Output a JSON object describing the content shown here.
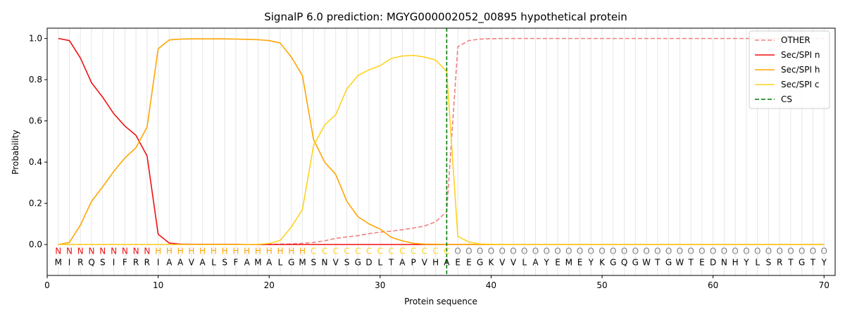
{
  "chart_data": {
    "type": "line",
    "title": "SignalP 6.0 prediction: MGYG000002052_00895 hypothetical protein",
    "xlabel": "Protein sequence",
    "ylabel": "Probability",
    "xlim": [
      0,
      71
    ],
    "ylim": [
      -0.15,
      1.05
    ],
    "x_ticks": [
      0,
      10,
      20,
      30,
      40,
      50,
      60,
      70
    ],
    "y_ticks": [
      0.0,
      0.2,
      0.4,
      0.6,
      0.8,
      1.0
    ],
    "grid": "vertical lines at each residue",
    "legend_position": "top-right",
    "sequence": [
      "M",
      "I",
      "R",
      "Q",
      "S",
      "I",
      "F",
      "R",
      "R",
      "I",
      "A",
      "A",
      "V",
      "A",
      "L",
      "S",
      "F",
      "A",
      "M",
      "A",
      "L",
      "G",
      "M",
      "S",
      "N",
      "V",
      "S",
      "G",
      "D",
      "L",
      "T",
      "A",
      "P",
      "V",
      "H",
      "A",
      "E",
      "E",
      "G",
      "K",
      "V",
      "V",
      "L",
      "A",
      "Y",
      "E",
      "M",
      "E",
      "Y",
      "K",
      "G",
      "Q",
      "G",
      "W",
      "T",
      "G",
      "W",
      "T",
      "E",
      "D",
      "N",
      "H",
      "Y",
      "L",
      "S",
      "R",
      "T",
      "G",
      "T",
      "Y"
    ],
    "annotation": [
      "N",
      "N",
      "N",
      "N",
      "N",
      "N",
      "N",
      "N",
      "N",
      "H",
      "H",
      "H",
      "H",
      "H",
      "H",
      "H",
      "H",
      "H",
      "H",
      "H",
      "H",
      "H",
      "H",
      "C",
      "C",
      "C",
      "C",
      "C",
      "C",
      "C",
      "C",
      "C",
      "C",
      "C",
      "C",
      "C",
      "O",
      "O",
      "O",
      "O",
      "O",
      "O",
      "O",
      "O",
      "O",
      "O",
      "O",
      "O",
      "O",
      "O",
      "O",
      "O",
      "O",
      "O",
      "O",
      "O",
      "O",
      "O",
      "O",
      "O",
      "O",
      "O",
      "O",
      "O",
      "O",
      "O",
      "O",
      "O",
      "O",
      "O"
    ],
    "annotation_colors": {
      "N": "#ee1111",
      "H": "#ffa500",
      "C": "#ffd21f",
      "O": "#808080"
    },
    "cleavage_site": 36,
    "series": [
      {
        "name": "OTHER",
        "color": "#f08080",
        "dash": "dashed",
        "values": [
          0.0,
          0.0,
          0.0,
          0.0,
          0.0,
          0.0,
          0.0,
          0.0,
          0.0,
          0.0,
          0.0,
          0.0,
          0.0,
          0.0,
          0.0,
          0.0,
          0.0,
          0.0,
          0.0,
          0.001,
          0.002,
          0.003,
          0.006,
          0.01,
          0.018,
          0.03,
          0.037,
          0.043,
          0.053,
          0.06,
          0.065,
          0.072,
          0.08,
          0.09,
          0.11,
          0.16,
          0.96,
          0.99,
          0.997,
          0.999,
          1.0,
          1.0,
          1.0,
          1.0,
          1.0,
          1.0,
          1.0,
          1.0,
          1.0,
          1.0,
          1.0,
          1.0,
          1.0,
          1.0,
          1.0,
          1.0,
          1.0,
          1.0,
          1.0,
          1.0,
          1.0,
          1.0,
          1.0,
          1.0,
          1.0,
          1.0,
          1.0,
          1.0,
          1.0,
          1.0
        ]
      },
      {
        "name": "Sec/SPI n",
        "color": "#ee1111",
        "dash": "solid",
        "values": [
          1.0,
          0.99,
          0.905,
          0.785,
          0.715,
          0.635,
          0.575,
          0.53,
          0.43,
          0.05,
          0.007,
          0.002,
          0.001,
          0.001,
          0.001,
          0.001,
          0.001,
          0.0,
          0.0,
          0.0,
          0.0,
          0.0,
          0.0,
          0.0,
          0.0,
          0.0,
          0.0,
          0.0,
          0.0,
          0.0,
          0.0,
          0.0,
          0.0,
          0.0,
          0.0,
          0.0,
          0.0,
          0.0,
          0.0,
          0.0,
          0.0,
          0.0,
          0.0,
          0.0,
          0.0,
          0.0,
          0.0,
          0.0,
          0.0,
          0.0,
          0.0,
          0.0,
          0.0,
          0.0,
          0.0,
          0.0,
          0.0,
          0.0,
          0.0,
          0.0,
          0.0,
          0.0,
          0.0,
          0.0,
          0.0,
          0.0,
          0.0,
          0.0,
          0.0,
          0.0
        ]
      },
      {
        "name": "Sec/SPI h",
        "color": "#ffa500",
        "dash": "solid",
        "values": [
          0.0,
          0.01,
          0.095,
          0.21,
          0.28,
          0.355,
          0.42,
          0.47,
          0.57,
          0.95,
          0.993,
          0.997,
          0.998,
          0.998,
          0.998,
          0.998,
          0.997,
          0.996,
          0.994,
          0.99,
          0.978,
          0.91,
          0.82,
          0.51,
          0.4,
          0.34,
          0.21,
          0.135,
          0.1,
          0.075,
          0.035,
          0.018,
          0.006,
          0.002,
          0.001,
          0.0,
          0.0,
          0.0,
          0.0,
          0.0,
          0.0,
          0.0,
          0.0,
          0.0,
          0.0,
          0.0,
          0.0,
          0.0,
          0.0,
          0.0,
          0.0,
          0.0,
          0.0,
          0.0,
          0.0,
          0.0,
          0.0,
          0.0,
          0.0,
          0.0,
          0.0,
          0.0,
          0.0,
          0.0,
          0.0,
          0.0,
          0.0,
          0.0,
          0.0,
          0.0
        ]
      },
      {
        "name": "Sec/SPI c",
        "color": "#ffd21f",
        "dash": "solid",
        "values": [
          0.0,
          0.0,
          0.0,
          0.0,
          0.0,
          0.0,
          0.0,
          0.0,
          0.0,
          0.0,
          0.0,
          0.0,
          0.0,
          0.0,
          0.0,
          0.0,
          0.0,
          0.0,
          0.001,
          0.005,
          0.02,
          0.085,
          0.17,
          0.48,
          0.58,
          0.63,
          0.755,
          0.82,
          0.848,
          0.868,
          0.903,
          0.915,
          0.918,
          0.91,
          0.895,
          0.84,
          0.04,
          0.012,
          0.003,
          0.001,
          0.0,
          0.0,
          0.0,
          0.0,
          0.0,
          0.0,
          0.0,
          0.0,
          0.0,
          0.0,
          0.0,
          0.0,
          0.0,
          0.0,
          0.0,
          0.0,
          0.0,
          0.0,
          0.0,
          0.0,
          0.0,
          0.0,
          0.0,
          0.0,
          0.0,
          0.0,
          0.0,
          0.0,
          0.0,
          0.0
        ]
      }
    ],
    "legend": [
      {
        "label": "OTHER",
        "color": "#f08080",
        "dash": "dashed"
      },
      {
        "label": "Sec/SPI n",
        "color": "#ee1111",
        "dash": "solid"
      },
      {
        "label": "Sec/SPI h",
        "color": "#ffa500",
        "dash": "solid"
      },
      {
        "label": "Sec/SPI c",
        "color": "#ffd21f",
        "dash": "solid"
      },
      {
        "label": "CS",
        "color": "#007a00",
        "dash": "dashed"
      }
    ]
  }
}
